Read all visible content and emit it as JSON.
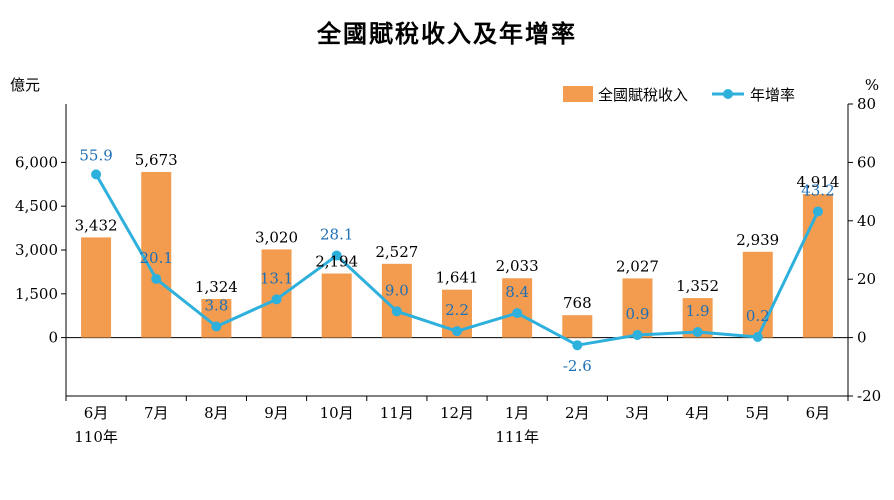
{
  "chart_data": {
    "type": "bar",
    "title": "全國賦稅收入及年增率",
    "categories": [
      "6月",
      "7月",
      "8月",
      "9月",
      "10月",
      "11月",
      "12月",
      "1月",
      "2月",
      "3月",
      "4月",
      "5月",
      "6月"
    ],
    "year_labels": [
      "110年",
      "",
      "",
      "",
      "",
      "",
      "",
      "111年",
      "",
      "",
      "",
      "",
      ""
    ],
    "series": [
      {
        "name": "全國賦稅收入",
        "type": "bar",
        "axis": "left",
        "color": "#f39c4f",
        "values": [
          3432,
          5673,
          1324,
          3020,
          2194,
          2527,
          1641,
          2033,
          768,
          2027,
          1352,
          2939,
          4914
        ],
        "labels": [
          "3,432",
          "5,673",
          "1,324",
          "3,020",
          "2,194",
          "2,527",
          "1,641",
          "2,033",
          "768",
          "2,027",
          "1,352",
          "2,939",
          "4,914"
        ]
      },
      {
        "name": "年增率",
        "type": "line",
        "axis": "right",
        "color": "#2eb0dc",
        "label_color": "#1f6fb5",
        "values": [
          55.9,
          20.1,
          3.8,
          13.1,
          28.1,
          9.0,
          2.2,
          8.4,
          -2.6,
          0.9,
          1.9,
          0.2,
          43.2
        ],
        "labels": [
          "55.9",
          "20.1",
          "3.8",
          "13.1",
          "28.1",
          "9.0",
          "2.2",
          "8.4",
          "-2.6",
          "0.9",
          "1.9",
          "0.2",
          "43.2"
        ]
      }
    ],
    "y_left": {
      "unit": "億元",
      "ylim": [
        -2000,
        8000
      ],
      "ticks": [
        0,
        1500,
        3000,
        4500,
        6000
      ],
      "tick_labels": [
        "0",
        "1,500",
        "3,000",
        "4,500",
        "6,000"
      ]
    },
    "y_right": {
      "unit": "%",
      "ylim": [
        -20,
        80
      ],
      "ticks": [
        -20,
        0,
        20,
        40,
        60,
        80
      ],
      "tick_labels": [
        "-20",
        "0",
        "20",
        "40",
        "60",
        "80"
      ]
    },
    "legend_position": "top-right",
    "grid": false
  }
}
